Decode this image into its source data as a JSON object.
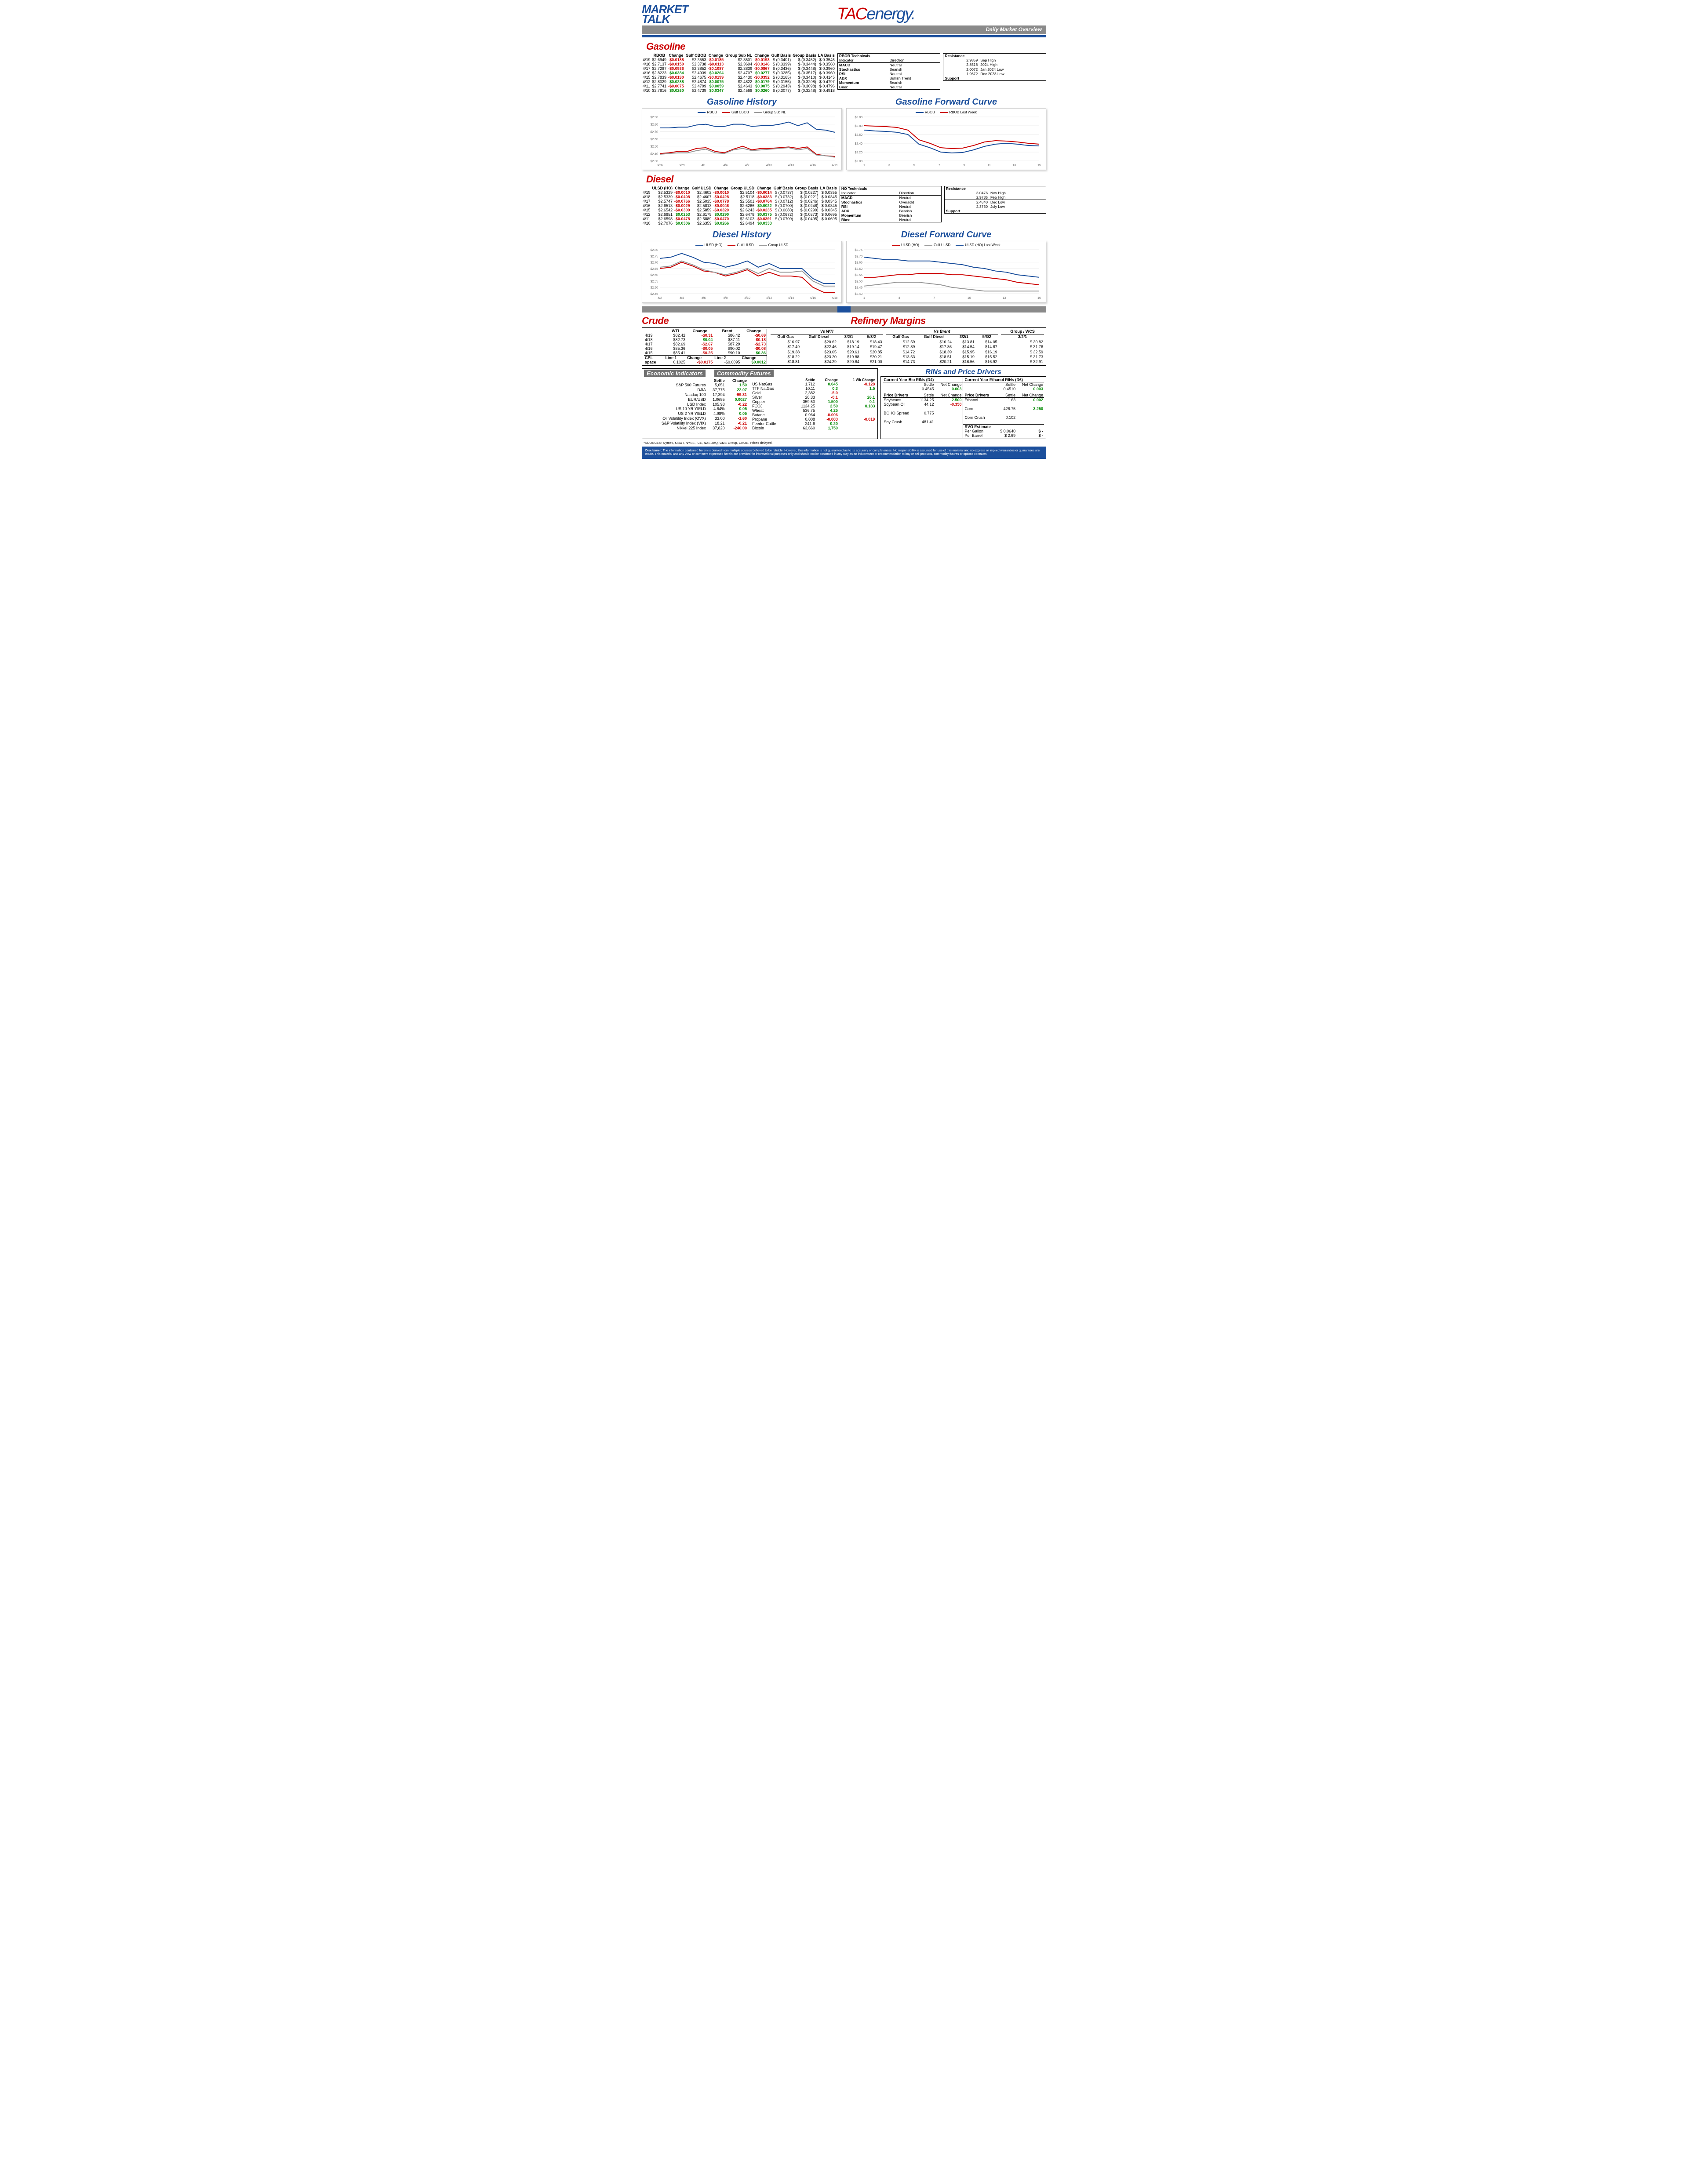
{
  "header": {
    "market_talk_line1": "MARKET",
    "market_talk_line2": "TALK",
    "logo_tac": "TAC",
    "logo_energy": "energy",
    "overview_label": "Daily Market Overview"
  },
  "gasoline": {
    "title": "Gasoline",
    "headers": [
      "",
      "RBOB",
      "Change",
      "Gulf CBOB",
      "Change",
      "Group Sub NL",
      "Change",
      "Gulf Basis",
      "Group Basis",
      "LA Basis"
    ],
    "rows": [
      {
        "date": "4/19",
        "rbob": "$2.6949",
        "rbob_chg": "-$0.0188",
        "gcbob": "$2.3553",
        "gcbob_chg": "-$0.0185",
        "grp": "$2.3501",
        "grp_chg": "-$0.0193",
        "gulf_b": "$ (0.3401)",
        "grp_b": "$ (0.3452)",
        "la_b": "$ 0.3545"
      },
      {
        "date": "4/18",
        "rbob": "$2.7137",
        "rbob_chg": "-$0.0150",
        "gcbob": "$2.3738",
        "gcbob_chg": "-$0.0113",
        "grp": "$2.3694",
        "grp_chg": "-$0.0146",
        "gulf_b": "$ (0.3399)",
        "grp_b": "$ (0.3444)",
        "la_b": "$ 0.3560"
      },
      {
        "date": "4/17",
        "rbob": "$2.7287",
        "rbob_chg": "-$0.0936",
        "gcbob": "$2.3852",
        "gcbob_chg": "-$0.1087",
        "grp": "$2.3839",
        "grp_chg": "-$0.0867",
        "gulf_b": "$ (0.3436)",
        "grp_b": "$ (0.3448)",
        "la_b": "$ 0.3960"
      },
      {
        "date": "4/16",
        "rbob": "$2.8223",
        "rbob_chg": "$0.0384",
        "gcbob": "$2.4939",
        "gcbob_chg": "$0.0264",
        "grp": "$2.4707",
        "grp_chg": "$0.0277",
        "gulf_b": "$ (0.3285)",
        "grp_b": "$ (0.3517)",
        "la_b": "$ 0.3960"
      },
      {
        "date": "4/15",
        "rbob": "$2.7839",
        "rbob_chg": "-$0.0190",
        "gcbob": "$2.4675",
        "gcbob_chg": "-$0.0199",
        "grp": "$2.4430",
        "grp_chg": "-$0.0392",
        "gulf_b": "$ (0.3165)",
        "grp_b": "$ (0.3410)",
        "la_b": "$ 0.4145"
      },
      {
        "date": "4/12",
        "rbob": "$2.8029",
        "rbob_chg": "$0.0288",
        "gcbob": "$2.4874",
        "gcbob_chg": "$0.0075",
        "grp": "$2.4822",
        "grp_chg": "$0.0179",
        "gulf_b": "$ (0.3155)",
        "grp_b": "$ (0.3208)",
        "la_b": "$ 0.4797"
      },
      {
        "date": "4/11",
        "rbob": "$2.7741",
        "rbob_chg": "-$0.0075",
        "gcbob": "$2.4799",
        "gcbob_chg": "$0.0059",
        "grp": "$2.4643",
        "grp_chg": "$0.0075",
        "gulf_b": "$ (0.2943)",
        "grp_b": "$ (0.3098)",
        "la_b": "$ 0.4796"
      },
      {
        "date": "4/10",
        "rbob": "$2.7816",
        "rbob_chg": "$0.0260",
        "gcbob": "$2.4739",
        "gcbob_chg": "$0.0347",
        "grp": "$2.4568",
        "grp_chg": "$0.0260",
        "gulf_b": "$ (0.3077)",
        "grp_b": "$ (0.3248)",
        "la_b": "$ 0.4918"
      }
    ],
    "technicals": {
      "title": "RBOB Technicals",
      "h1": "Indicator",
      "h2": "Direction",
      "rows": [
        [
          "MACD",
          "Neutral"
        ],
        [
          "Stochastics",
          "Bearish"
        ],
        [
          "RSI",
          "Neutral"
        ],
        [
          "ADX",
          "Bullish Trend"
        ],
        [
          "Momentum",
          "Bearish"
        ],
        [
          "Bias:",
          "Neutral"
        ]
      ]
    },
    "resistance": {
      "title": "Resistance",
      "rows": [
        [
          "2.9859",
          "Sep High"
        ],
        [
          "2.8516",
          "2024 High"
        ],
        [
          "2.0072",
          "Jan 2024 Low"
        ],
        [
          "1.9672",
          "Dec 2023 Low"
        ]
      ],
      "support": "Support"
    },
    "history": {
      "title": "Gasoline History",
      "legend": [
        {
          "name": "RBOB",
          "color": "#1b4f9c"
        },
        {
          "name": "Gulf CBOB",
          "color": "#cc0000"
        },
        {
          "name": "Group Sub NL",
          "color": "#999999"
        }
      ],
      "ylim": [
        2.3,
        2.9
      ],
      "ystep": 0.1,
      "xlabels": [
        "3/26",
        "3/29",
        "4/1",
        "4/4",
        "4/7",
        "4/10",
        "4/13",
        "4/16",
        "4/19"
      ],
      "series": {
        "rbob": [
          2.75,
          2.75,
          2.76,
          2.76,
          2.79,
          2.8,
          2.77,
          2.77,
          2.8,
          2.8,
          2.77,
          2.78,
          2.78,
          2.8,
          2.83,
          2.78,
          2.82,
          2.73,
          2.72,
          2.69
        ],
        "gcbob": [
          2.4,
          2.41,
          2.43,
          2.43,
          2.47,
          2.48,
          2.43,
          2.41,
          2.46,
          2.5,
          2.45,
          2.47,
          2.47,
          2.48,
          2.49,
          2.47,
          2.49,
          2.39,
          2.37,
          2.36
        ],
        "group": [
          2.39,
          2.4,
          2.41,
          2.41,
          2.44,
          2.46,
          2.41,
          2.4,
          2.45,
          2.47,
          2.44,
          2.45,
          2.46,
          2.47,
          2.48,
          2.45,
          2.47,
          2.38,
          2.37,
          2.35
        ]
      }
    },
    "forward": {
      "title": "Gasoline Forward Curve",
      "legend": [
        {
          "name": "RBOB",
          "color": "#1b4f9c"
        },
        {
          "name": "RBOB Last Week",
          "color": "#cc0000"
        }
      ],
      "ylim": [
        2.0,
        3.0
      ],
      "ystep": 0.2,
      "xlabels": [
        "1",
        "3",
        "5",
        "7",
        "9",
        "11",
        "13",
        "15"
      ],
      "series": {
        "rbob": [
          2.7,
          2.68,
          2.67,
          2.65,
          2.6,
          2.38,
          2.3,
          2.2,
          2.18,
          2.19,
          2.25,
          2.33,
          2.38,
          2.4,
          2.38,
          2.35,
          2.34
        ],
        "rbob_lw": [
          2.8,
          2.79,
          2.78,
          2.76,
          2.7,
          2.48,
          2.4,
          2.3,
          2.28,
          2.29,
          2.35,
          2.43,
          2.46,
          2.45,
          2.43,
          2.4,
          2.38
        ]
      }
    }
  },
  "diesel": {
    "title": "Diesel",
    "headers": [
      "",
      "ULSD (HO)",
      "Change",
      "Gulf ULSD",
      "Change",
      "Group ULSD",
      "Change",
      "Gulf Basis",
      "Group Basis",
      "LA Basis"
    ],
    "rows": [
      {
        "date": "4/19",
        "a": "$2.5329",
        "ac": "-$0.0010",
        "b": "$2.4602",
        "bc": "-$0.0010",
        "c": "$2.5104",
        "cc": "-$0.0014",
        "gb": "$ (0.0737)",
        "grb": "$ (0.0227)",
        "lab": "$ 0.0355"
      },
      {
        "date": "4/18",
        "a": "$2.5339",
        "ac": "-$0.0408",
        "b": "$2.4607",
        "bc": "-$0.0428",
        "c": "$2.5118",
        "cc": "-$0.0383",
        "gb": "$ (0.0732)",
        "grb": "$ (0.0221)",
        "lab": "$ 0.0345"
      },
      {
        "date": "4/17",
        "a": "$2.5747",
        "ac": "-$0.0766",
        "b": "$2.5035",
        "bc": "-$0.0778",
        "c": "$2.5501",
        "cc": "-$0.0764",
        "gb": "$ (0.0712)",
        "grb": "$ (0.0246)",
        "lab": "$ 0.0345"
      },
      {
        "date": "4/16",
        "a": "$2.6513",
        "ac": "-$0.0029",
        "b": "$2.5813",
        "bc": "-$0.0046",
        "c": "$2.6266",
        "cc": "$0.0022",
        "gb": "$ (0.0700)",
        "grb": "$ (0.0248)",
        "lab": "$ 0.0345"
      },
      {
        "date": "4/15",
        "a": "$2.6542",
        "ac": "-$0.0309",
        "b": "$2.5859",
        "bc": "-$0.0320",
        "c": "$2.6243",
        "cc": "-$0.0235",
        "gb": "$ (0.0683)",
        "grb": "$ (0.0299)",
        "lab": "$ 0.0345"
      },
      {
        "date": "4/12",
        "a": "$2.6851",
        "ac": "$0.0253",
        "b": "$2.6179",
        "bc": "$0.0290",
        "c": "$2.6478",
        "cc": "$0.0375",
        "gb": "$ (0.0672)",
        "grb": "$ (0.0373)",
        "lab": "$ 0.0695"
      },
      {
        "date": "4/11",
        "a": "$2.6598",
        "ac": "-$0.0478",
        "b": "$2.5889",
        "bc": "-$0.0470",
        "c": "$2.6103",
        "cc": "-$0.0391",
        "gb": "$ (0.0709)",
        "grb": "$ (0.0495)",
        "lab": "$ 0.0695"
      },
      {
        "date": "4/10",
        "a": "$2.7076",
        "ac": "$0.0306",
        "b": "$2.6359",
        "bc": "$0.0266",
        "c": "$2.6494",
        "cc": "$0.0333",
        "gb": "",
        "grb": "",
        "lab": ""
      }
    ],
    "technicals": {
      "title": "HO Technicals",
      "h1": "Indicator",
      "h2": "Direction",
      "rows": [
        [
          "MACD",
          "Neutral"
        ],
        [
          "Stochastics",
          "Oversold"
        ],
        [
          "RSI",
          "Neutral"
        ],
        [
          "ADX",
          "Bearish"
        ],
        [
          "Momentum",
          "Bearish"
        ],
        [
          "Bias:",
          "Neutral"
        ]
      ]
    },
    "resistance": {
      "title": "Resistance",
      "rows": [
        [
          "3.0476",
          "Nov High"
        ],
        [
          "2.9735",
          "Feb High"
        ],
        [
          "2.4840",
          "Dec Low"
        ],
        [
          "2.3750",
          "July Low"
        ]
      ],
      "support": "Support"
    },
    "history": {
      "title": "Diesel History",
      "legend": [
        {
          "name": "ULSD (HO)",
          "color": "#1b4f9c"
        },
        {
          "name": "Gulf ULSD",
          "color": "#cc0000"
        },
        {
          "name": "Group ULSD",
          "color": "#999999"
        }
      ],
      "ylim": [
        2.45,
        2.8
      ],
      "ystep": 0.05,
      "xlabels": [
        "4/2",
        "4/4",
        "4/6",
        "4/8",
        "4/10",
        "4/12",
        "4/14",
        "4/16",
        "4/18"
      ],
      "series": {
        "ho": [
          2.73,
          2.74,
          2.77,
          2.74,
          2.7,
          2.69,
          2.66,
          2.68,
          2.71,
          2.66,
          2.69,
          2.65,
          2.65,
          2.65,
          2.57,
          2.53,
          2.53
        ],
        "gulf": [
          2.65,
          2.66,
          2.7,
          2.67,
          2.63,
          2.62,
          2.59,
          2.61,
          2.64,
          2.59,
          2.62,
          2.59,
          2.59,
          2.58,
          2.5,
          2.46,
          2.46
        ],
        "group": [
          2.66,
          2.67,
          2.71,
          2.68,
          2.64,
          2.62,
          2.6,
          2.62,
          2.65,
          2.61,
          2.65,
          2.62,
          2.62,
          2.63,
          2.55,
          2.51,
          2.51
        ]
      }
    },
    "forward": {
      "title": "Diesel Forward Curve",
      "legend": [
        {
          "name": "ULSD (HO)",
          "color": "#cc0000"
        },
        {
          "name": "Gulf ULSD",
          "color": "#999999"
        },
        {
          "name": "ULSD (HO) Last Week",
          "color": "#1b4f9c"
        }
      ],
      "ylim": [
        2.4,
        2.75
      ],
      "ystep": 0.05,
      "xlabels": [
        "1",
        "4",
        "7",
        "10",
        "13",
        "16"
      ],
      "series": {
        "ho": [
          2.53,
          2.53,
          2.54,
          2.55,
          2.55,
          2.56,
          2.56,
          2.56,
          2.55,
          2.55,
          2.54,
          2.53,
          2.52,
          2.51,
          2.49,
          2.48,
          2.47
        ],
        "gulf": [
          2.46,
          2.47,
          2.48,
          2.49,
          2.49,
          2.49,
          2.48,
          2.47,
          2.45,
          2.44,
          2.43,
          2.42,
          2.42,
          2.42,
          2.42,
          2.42,
          2.42
        ],
        "ho_lw": [
          2.69,
          2.68,
          2.67,
          2.67,
          2.66,
          2.66,
          2.66,
          2.65,
          2.64,
          2.63,
          2.61,
          2.6,
          2.58,
          2.57,
          2.55,
          2.54,
          2.53
        ]
      }
    }
  },
  "crude": {
    "title": "Crude",
    "headers": [
      "",
      "WTI",
      "Change",
      "Brent",
      "Change"
    ],
    "rows": [
      {
        "d": "4/19",
        "wti": "$82.42",
        "wtic": "-$0.31",
        "brent": "$86.42",
        "brentc": "-$0.69"
      },
      {
        "d": "4/18",
        "wti": "$82.73",
        "wtic": "$0.04",
        "brent": "$87.11",
        "brentc": "-$0.18"
      },
      {
        "d": "4/17",
        "wti": "$82.69",
        "wtic": "-$2.67",
        "brent": "$87.29",
        "brentc": "-$2.73"
      },
      {
        "d": "4/16",
        "wti": "$85.36",
        "wtic": "-$0.05",
        "brent": "$90.02",
        "brentc": "-$0.08"
      },
      {
        "d": "4/15",
        "wti": "$85.41",
        "wtic": "-$0.25",
        "brent": "$90.10",
        "brentc": "$0.36"
      }
    ],
    "cpl_label": "CPL",
    "cpl_l1h": "Line 1",
    "cpl_ch": "Change",
    "cpl_l2h": "Line 2",
    "space_label": "space",
    "space_v": "0.1025",
    "space_c1": "-$0.0175",
    "space_l2": "-$0.0095",
    "space_c2": "$0.0012"
  },
  "refinery": {
    "title": "Refinery Margins",
    "vs_wti": "Vs WTI",
    "vs_brent": "Vs Brent",
    "group_wcs": "Group / WCS",
    "h": [
      "Gulf Gas",
      "Gulf Diesel",
      "3/2/1",
      "5/3/2",
      "Gulf Gas",
      "Gulf Diesel",
      "3/2/1",
      "5/3/2",
      "3/2/1"
    ],
    "rows": [
      [
        "$16.97",
        "$20.62",
        "$18.19",
        "$18.43",
        "$12.59",
        "$16.24",
        "$13.81",
        "$14.05",
        "$      30.82"
      ],
      [
        "$17.49",
        "$22.46",
        "$19.14",
        "$19.47",
        "$12.89",
        "$17.86",
        "$14.54",
        "$14.87",
        "$      31.76"
      ],
      [
        "$19.38",
        "$23.05",
        "$20.61",
        "$20.85",
        "$14.72",
        "$18.39",
        "$15.95",
        "$16.19",
        "$      32.59"
      ],
      [
        "$18.22",
        "$23.20",
        "$19.88",
        "$20.21",
        "$13.53",
        "$18.51",
        "$15.19",
        "$15.52",
        "$      31.73"
      ],
      [
        "$18.81",
        "$24.29",
        "$20.64",
        "$21.00",
        "$14.73",
        "$20.21",
        "$16.56",
        "$16.92",
        "$      32.91"
      ]
    ]
  },
  "econ": {
    "title": "Economic Indicators",
    "h": [
      "",
      "Settle",
      "Change"
    ],
    "rows": [
      [
        "S&P 500 Futures",
        "5,051",
        "1.50",
        "pos"
      ],
      [
        "DJIA",
        "37,775",
        "22.07",
        "pos"
      ],
      [
        "Nasdaq 100",
        "17,394",
        "-99.31",
        "neg"
      ],
      [
        "EUR/USD",
        "1.0655",
        "0.0027",
        "pos"
      ],
      [
        "USD Index",
        "105.98",
        "-0.22",
        "neg"
      ],
      [
        "US 10 YR YIELD",
        "4.64%",
        "0.05",
        "pos"
      ],
      [
        "US 2 YR YIELD",
        "4.98%",
        "0.05",
        "pos"
      ],
      [
        "Oil Volatility Index (OVX)",
        "33.00",
        "-1.60",
        "neg"
      ],
      [
        "S&P Volatility Index (VIX)",
        "18.21",
        "-0.21",
        "neg"
      ],
      [
        "Nikkei 225 Index",
        "37,820",
        "-240.00",
        "neg"
      ]
    ]
  },
  "comm": {
    "title": "Commodity Futures",
    "h": [
      "",
      "Settle",
      "Change",
      "1 Wk Change"
    ],
    "rows": [
      [
        "US NatGas",
        "1.712",
        "0.045",
        "pos",
        "-0.128",
        "neg"
      ],
      [
        "TTF NatGas",
        "10.11",
        "0.3",
        "pos",
        "1.5",
        "pos"
      ],
      [
        "Gold",
        "2,382",
        "-5.0",
        "neg",
        "",
        ""
      ],
      [
        "Silver",
        "28.33",
        "-0.1",
        "neg",
        "26.1",
        "pos"
      ],
      [
        "Copper",
        "359.50",
        "1.500",
        "pos",
        "0.1",
        "pos"
      ],
      [
        "FCOJ",
        "1134.25",
        "2.50",
        "pos",
        "0.183",
        "pos"
      ],
      [
        "Wheat",
        "536.75",
        "4.25",
        "pos",
        "",
        ""
      ],
      [
        "Butane",
        "0.964",
        "-0.006",
        "neg",
        "",
        ""
      ],
      [
        "Propane",
        "0.808",
        "-0.003",
        "neg",
        "-0.019",
        "neg"
      ],
      [
        "Feeder Cattle",
        "241.6",
        "0.20",
        "pos",
        "",
        ""
      ],
      [
        "Bitcoin",
        "63,660",
        "1,750",
        "pos",
        "",
        ""
      ]
    ]
  },
  "rins": {
    "title": "RINs and Price Drivers",
    "d4_title": "Current Year Bio RINs (D4)",
    "d6_title": "Current Year Ethanol RINs (D6)",
    "h": [
      "Settle",
      "Net Change"
    ],
    "d4": [
      "0.4545",
      "0.003",
      "pos"
    ],
    "d6": [
      "0.4510",
      "0.003",
      "pos"
    ],
    "pd_title": "Price Drivers",
    "left": [
      [
        "Soybeans",
        "1134.25",
        "2.500",
        "pos"
      ],
      [
        "Soybean Oil",
        "44.12",
        "-0.350",
        "neg"
      ],
      [
        "",
        "",
        "",
        ""
      ],
      [
        "BOHO Spread",
        "0.775",
        "",
        ""
      ],
      [
        "",
        "",
        "",
        ""
      ],
      [
        "Soy Crush",
        "481.41",
        "",
        ""
      ]
    ],
    "right": [
      [
        "Ethanol",
        "1.63",
        "0.002",
        "pos"
      ],
      [
        "",
        "",
        "",
        ""
      ],
      [
        "Corn",
        "426.75",
        "3.250",
        "pos"
      ],
      [
        "",
        "",
        "",
        ""
      ],
      [
        "Corn Crush",
        "0.102",
        "",
        ""
      ]
    ],
    "rvo_title": "RVO Estimate",
    "rvo": [
      [
        "Per Gallon",
        "$   0.0640",
        "$        -"
      ],
      [
        "Per Barrel",
        "$       2.69",
        "$        -"
      ]
    ]
  },
  "footnote": "*SOURCES: Nymex, CBOT, NYSE, ICE, NASDAQ, CME Group, CBOE.   Prices delayed.",
  "disclaimer_label": "Disclaimer:",
  "disclaimer": "The information contained herein is derived from multiple sources believed to be reliable.  However, this information is not guaranteed as to its accuracy or completeness. No responsibility is assumed for use of this material and no express or implied warranties or guarantees are made. This material and any view or comment expressed herein are provided for informational purposes only and should not be construed in any way as an inducement or recommendation to buy or sell products, commodity futures or options contracts."
}
